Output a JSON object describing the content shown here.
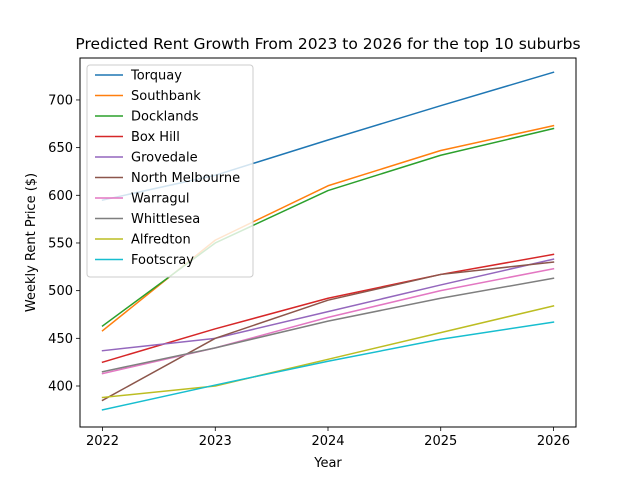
{
  "chart_data": {
    "type": "line",
    "title": "Predicted Rent Growth From 2023 to 2026 for the top 10 suburbs",
    "xlabel": "Year",
    "ylabel": "Weekly Rent Price ($)",
    "x": [
      2022,
      2023,
      2024,
      2025,
      2026
    ],
    "x_ticks": [
      "2022",
      "2023",
      "2024",
      "2025",
      "2026"
    ],
    "y_ticks": [
      400,
      450,
      500,
      550,
      600,
      650,
      700
    ],
    "xlim": [
      2021.8,
      2026.2
    ],
    "ylim": [
      357,
      744
    ],
    "grid": false,
    "legend_position": "upper left",
    "series": [
      {
        "name": "Torquay",
        "color": "#1f77b4",
        "values": [
          595,
          621,
          658,
          694,
          729
        ]
      },
      {
        "name": "Southbank",
        "color": "#ff7f0e",
        "values": [
          458,
          553,
          610,
          647,
          673
        ]
      },
      {
        "name": "Docklands",
        "color": "#2ca02c",
        "values": [
          463,
          550,
          605,
          642,
          670
        ]
      },
      {
        "name": "Box Hill",
        "color": "#d62728",
        "values": [
          425,
          460,
          492,
          517,
          538
        ]
      },
      {
        "name": "Grovedale",
        "color": "#9467bd",
        "values": [
          437,
          450,
          478,
          506,
          533
        ]
      },
      {
        "name": "North Melbourne",
        "color": "#8c564b",
        "values": [
          385,
          450,
          490,
          517,
          530
        ]
      },
      {
        "name": "Warragul",
        "color": "#e377c2",
        "values": [
          413,
          440,
          472,
          500,
          523
        ]
      },
      {
        "name": "Whittlesea",
        "color": "#7f7f7f",
        "values": [
          415,
          440,
          468,
          492,
          513
        ]
      },
      {
        "name": "Alfredton",
        "color": "#bcbd22",
        "values": [
          388,
          400,
          428,
          456,
          484
        ]
      },
      {
        "name": "Footscray",
        "color": "#17becf",
        "values": [
          375,
          401,
          426,
          449,
          467
        ]
      }
    ]
  }
}
